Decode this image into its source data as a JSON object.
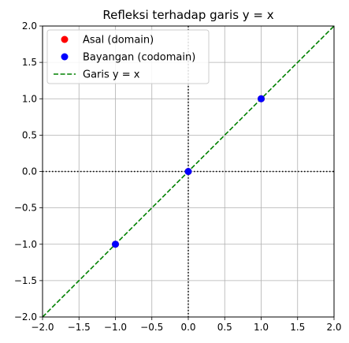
{
  "chart_data": {
    "type": "line",
    "title": "Refleksi terhadap garis y = x",
    "xlabel": "",
    "ylabel": "",
    "xlim": [
      -2.0,
      2.0
    ],
    "ylim": [
      -2.0,
      2.0
    ],
    "xticks": [
      -2.0,
      -1.5,
      -1.0,
      -0.5,
      0.0,
      0.5,
      1.0,
      1.5,
      2.0
    ],
    "yticks": [
      -2.0,
      -1.5,
      -1.0,
      -0.5,
      0.0,
      0.5,
      1.0,
      1.5,
      2.0
    ],
    "xtick_labels": [
      "−2.0",
      "−1.5",
      "−1.0",
      "−0.5",
      "0.0",
      "0.5",
      "1.0",
      "1.5",
      "2.0"
    ],
    "ytick_labels": [
      "−2.0",
      "−1.5",
      "−1.0",
      "−0.5",
      "0.0",
      "0.5",
      "1.0",
      "1.5",
      "2.0"
    ],
    "grid": true,
    "legend_position": "top-left",
    "axes_lines": {
      "x": 0,
      "y": 0,
      "style": "dotted",
      "color": "#000000"
    },
    "series": [
      {
        "name": "Asal (domain)",
        "kind": "markers",
        "color": "#ff0000",
        "points": [
          [
            -1,
            -1
          ],
          [
            0,
            0
          ],
          [
            1,
            1
          ]
        ]
      },
      {
        "name": "Bayangan (codomain)",
        "kind": "markers",
        "color": "#0000ff",
        "points": [
          [
            -1,
            -1
          ],
          [
            0,
            0
          ],
          [
            1,
            1
          ]
        ]
      },
      {
        "name": "Garis y = x",
        "kind": "dashed-line",
        "color": "#008000",
        "points": [
          [
            -2,
            -2
          ],
          [
            2,
            2
          ]
        ]
      }
    ]
  }
}
